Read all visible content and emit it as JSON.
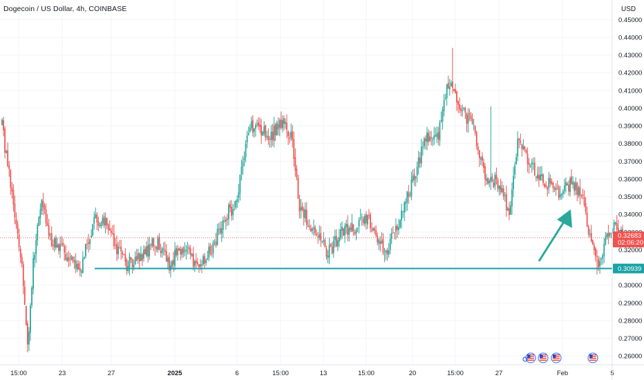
{
  "header": {
    "title": "Dogecoin / US Dollar, 4h, COINBASE",
    "currency": "USD"
  },
  "colors": {
    "up": "#26a69a",
    "down": "#ef5350",
    "support": "#1aa2a6",
    "arrow": "#2aa89a",
    "grid": "#f0f3fa",
    "price_tag": "#ef5350",
    "support_tag": "#1aa2a6"
  },
  "chart_data": {
    "type": "candlestick",
    "symbol": "Dogecoin / US Dollar",
    "interval": "4h",
    "exchange": "COINBASE",
    "y_axis": {
      "range": [
        0.255,
        0.456
      ],
      "ticks": [
        "0.26000",
        "0.27000",
        "0.28000",
        "0.29000",
        "0.30000",
        "0.31000",
        "0.32000",
        "0.33000",
        "0.34000",
        "0.35000",
        "0.36000",
        "0.37000",
        "0.38000",
        "0.39000",
        "0.40000",
        "0.41000",
        "0.42000",
        "0.43000",
        "0.44000",
        "0.45000"
      ]
    },
    "x_axis": {
      "ticks": [
        {
          "label": "15:00",
          "bold": false
        },
        {
          "label": "23",
          "bold": false
        },
        {
          "label": "27",
          "bold": false
        },
        {
          "label": "2025",
          "bold": true
        },
        {
          "label": "6",
          "bold": false
        },
        {
          "label": "15:00",
          "bold": false
        },
        {
          "label": "13",
          "bold": false
        },
        {
          "label": "15:00",
          "bold": false
        },
        {
          "label": "20",
          "bold": false
        },
        {
          "label": "15:00",
          "bold": false
        },
        {
          "label": "27",
          "bold": false
        },
        {
          "label": "Feb",
          "bold": false
        },
        {
          "label": "5",
          "bold": false
        }
      ]
    },
    "anchors": [
      [
        0,
        0.39
      ],
      [
        9,
        0.34
      ],
      [
        14,
        0.312
      ],
      [
        18,
        0.265
      ],
      [
        22,
        0.315
      ],
      [
        28,
        0.345
      ],
      [
        35,
        0.325
      ],
      [
        45,
        0.318
      ],
      [
        55,
        0.308
      ],
      [
        65,
        0.338
      ],
      [
        75,
        0.335
      ],
      [
        80,
        0.32
      ],
      [
        88,
        0.312
      ],
      [
        100,
        0.318
      ],
      [
        110,
        0.325
      ],
      [
        118,
        0.312
      ],
      [
        128,
        0.322
      ],
      [
        138,
        0.31
      ],
      [
        148,
        0.32
      ],
      [
        158,
        0.34
      ],
      [
        165,
        0.345
      ],
      [
        175,
        0.39
      ],
      [
        183,
        0.388
      ],
      [
        190,
        0.385
      ],
      [
        198,
        0.392
      ],
      [
        204,
        0.385
      ],
      [
        210,
        0.345
      ],
      [
        220,
        0.33
      ],
      [
        230,
        0.318
      ],
      [
        240,
        0.33
      ],
      [
        250,
        0.332
      ],
      [
        258,
        0.34
      ],
      [
        265,
        0.325
      ],
      [
        272,
        0.32
      ],
      [
        280,
        0.335
      ],
      [
        290,
        0.36
      ],
      [
        300,
        0.385
      ],
      [
        307,
        0.382
      ],
      [
        315,
        0.415
      ],
      [
        325,
        0.398
      ],
      [
        333,
        0.39
      ],
      [
        341,
        0.36
      ],
      [
        350,
        0.358
      ],
      [
        358,
        0.34
      ],
      [
        365,
        0.385
      ],
      [
        372,
        0.368
      ],
      [
        380,
        0.362
      ],
      [
        388,
        0.355
      ],
      [
        395,
        0.352
      ],
      [
        402,
        0.358
      ],
      [
        410,
        0.352
      ],
      [
        415,
        0.325
      ],
      [
        420,
        0.312
      ],
      [
        426,
        0.325
      ],
      [
        432,
        0.333
      ],
      [
        438,
        0.328
      ]
    ],
    "last_price": 0.32683,
    "candle_countdown": "02:06:20",
    "support_level": 0.30939,
    "annotations": [
      "support line at 0.30939",
      "upward arrow (projected rise)"
    ]
  },
  "price_tag": {
    "price": "0.32683",
    "countdown": "02:06:20"
  },
  "support_tag": {
    "price": "0.30939"
  }
}
